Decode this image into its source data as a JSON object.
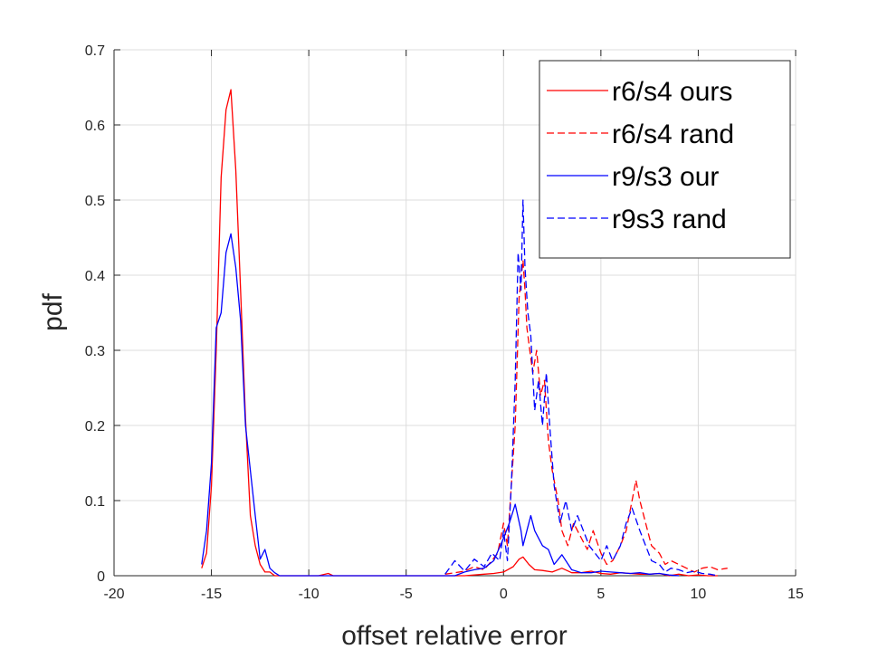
{
  "chart_data": {
    "type": "line",
    "title": "",
    "xlabel": "offset relative error",
    "ylabel": "pdf",
    "xlim": [
      -20,
      15
    ],
    "ylim": [
      0,
      0.7
    ],
    "xticks": [
      -20,
      -15,
      -10,
      -5,
      0,
      5,
      10,
      15
    ],
    "yticks": [
      0,
      0.1,
      0.2,
      0.3,
      0.4,
      0.5,
      0.6,
      0.7
    ],
    "xtick_labels": [
      "-20",
      "-15",
      "-10",
      "-5",
      "0",
      "5",
      "10",
      "15"
    ],
    "ytick_labels": [
      "0",
      "0.1",
      "0.2",
      "0.3",
      "0.4",
      "0.5",
      "0.6",
      "0.7"
    ],
    "grid": true,
    "legend_position": "top-right",
    "series": [
      {
        "name": "r6/s4 ours",
        "color": "#ff0000",
        "dash": "solid",
        "x": [
          -15.5,
          -15.25,
          -15.0,
          -14.75,
          -14.5,
          -14.25,
          -14.0,
          -13.75,
          -13.5,
          -13.25,
          -13.0,
          -12.75,
          -12.5,
          -12.25,
          -12.0,
          -11.75,
          -11.5,
          -11.25,
          -11.0,
          -10.5,
          -10.0,
          -9.5,
          -9.0,
          -8.75,
          -8.5,
          -8.0,
          -7.0,
          -6.0,
          -5.5,
          -3.0,
          -2.0,
          -1.0,
          -0.5,
          0.0,
          0.5,
          0.8,
          1.0,
          1.3,
          1.6,
          2.0,
          2.5,
          3.0,
          3.5,
          4.0,
          4.5,
          5.0,
          5.5,
          6.0,
          6.5,
          7.0,
          7.5,
          8.0,
          8.5,
          9.0,
          9.5,
          10.0,
          10.5,
          11.0
        ],
        "y": [
          0.01,
          0.03,
          0.12,
          0.3,
          0.53,
          0.62,
          0.647,
          0.54,
          0.38,
          0.21,
          0.08,
          0.04,
          0.015,
          0.005,
          0.005,
          0.0,
          0.0,
          0.0,
          0.0,
          0.0,
          0.0,
          0.0,
          0.003,
          0.0,
          0.0,
          0.0,
          0.0,
          0.0,
          0.0,
          0.0,
          0.0,
          0.002,
          0.003,
          0.005,
          0.012,
          0.022,
          0.025,
          0.015,
          0.008,
          0.007,
          0.005,
          0.01,
          0.004,
          0.004,
          0.006,
          0.003,
          0.002,
          0.004,
          0.003,
          0.002,
          0.002,
          0.003,
          0.0,
          0.002,
          0.0,
          0.001,
          0.0,
          0.0
        ]
      },
      {
        "name": "r6/s4 rand",
        "color": "#ff0000",
        "dash": "dashed",
        "x": [
          -3.0,
          -2.0,
          -1.5,
          -1.0,
          -0.6,
          -0.3,
          0.0,
          0.2,
          0.4,
          0.6,
          0.8,
          1.0,
          1.1,
          1.2,
          1.35,
          1.5,
          1.7,
          1.9,
          2.1,
          2.3,
          2.5,
          2.8,
          3.0,
          3.3,
          3.6,
          4.0,
          4.3,
          4.6,
          5.0,
          5.3,
          5.6,
          6.0,
          6.3,
          6.6,
          6.8,
          7.0,
          7.3,
          7.6,
          8.0,
          8.3,
          8.6,
          9.0,
          9.4,
          9.8,
          10.2,
          10.6,
          11.0,
          11.5
        ],
        "y": [
          0.002,
          0.006,
          0.012,
          0.008,
          0.02,
          0.03,
          0.07,
          0.04,
          0.12,
          0.2,
          0.37,
          0.42,
          0.38,
          0.33,
          0.3,
          0.27,
          0.3,
          0.24,
          0.26,
          0.18,
          0.14,
          0.1,
          0.06,
          0.04,
          0.07,
          0.05,
          0.035,
          0.06,
          0.03,
          0.015,
          0.02,
          0.04,
          0.06,
          0.1,
          0.127,
          0.1,
          0.07,
          0.04,
          0.03,
          0.015,
          0.02,
          0.015,
          0.01,
          0.005,
          0.01,
          0.012,
          0.008,
          0.01
        ]
      },
      {
        "name": "r9/s3 our",
        "color": "#0000ff",
        "dash": "solid",
        "x": [
          -15.5,
          -15.25,
          -15.0,
          -14.75,
          -14.5,
          -14.25,
          -14.0,
          -13.75,
          -13.5,
          -13.25,
          -13.0,
          -12.75,
          -12.5,
          -12.25,
          -12.0,
          -11.75,
          -11.5,
          -11.0,
          -2.5,
          -2.0,
          -1.5,
          -1.0,
          -0.5,
          0.0,
          0.3,
          0.6,
          0.9,
          1.0,
          1.2,
          1.4,
          1.6,
          2.0,
          2.3,
          2.6,
          3.0,
          3.5,
          4.0,
          4.5,
          5.0,
          5.5,
          6.0,
          6.5,
          7.0,
          7.5,
          8.0,
          8.5,
          9.0
        ],
        "y": [
          0.015,
          0.06,
          0.15,
          0.33,
          0.35,
          0.43,
          0.455,
          0.41,
          0.34,
          0.2,
          0.14,
          0.08,
          0.022,
          0.035,
          0.01,
          0.004,
          0.0,
          0.0,
          0.0,
          0.005,
          0.008,
          0.01,
          0.02,
          0.05,
          0.07,
          0.095,
          0.06,
          0.04,
          0.06,
          0.08,
          0.06,
          0.04,
          0.035,
          0.015,
          0.028,
          0.008,
          0.004,
          0.004,
          0.006,
          0.005,
          0.004,
          0.003,
          0.004,
          0.002,
          0.003,
          0.001,
          0.0
        ]
      },
      {
        "name": "r9s3 rand",
        "color": "#0000ff",
        "dash": "dashed",
        "x": [
          -3.0,
          -2.5,
          -2.0,
          -1.5,
          -1.0,
          -0.6,
          -0.2,
          0.0,
          0.2,
          0.4,
          0.6,
          0.75,
          0.9,
          1.0,
          1.1,
          1.25,
          1.4,
          1.6,
          1.8,
          2.0,
          2.2,
          2.4,
          2.6,
          2.9,
          3.2,
          3.5,
          3.8,
          4.1,
          4.4,
          4.7,
          5.0,
          5.3,
          5.6,
          6.0,
          6.3,
          6.6,
          7.0,
          7.3,
          7.6,
          8.0,
          8.3,
          8.6,
          9.0,
          9.4,
          9.8,
          10.2,
          10.6,
          11.0
        ],
        "y": [
          0.002,
          0.02,
          0.006,
          0.022,
          0.012,
          0.03,
          0.02,
          0.06,
          0.02,
          0.12,
          0.26,
          0.43,
          0.38,
          0.5,
          0.41,
          0.35,
          0.32,
          0.22,
          0.26,
          0.2,
          0.27,
          0.19,
          0.12,
          0.07,
          0.1,
          0.06,
          0.08,
          0.06,
          0.04,
          0.03,
          0.02,
          0.04,
          0.02,
          0.04,
          0.07,
          0.09,
          0.06,
          0.04,
          0.02,
          0.015,
          0.005,
          0.01,
          0.008,
          0.004,
          0.006,
          0.003,
          0.002,
          0.0
        ]
      }
    ]
  }
}
